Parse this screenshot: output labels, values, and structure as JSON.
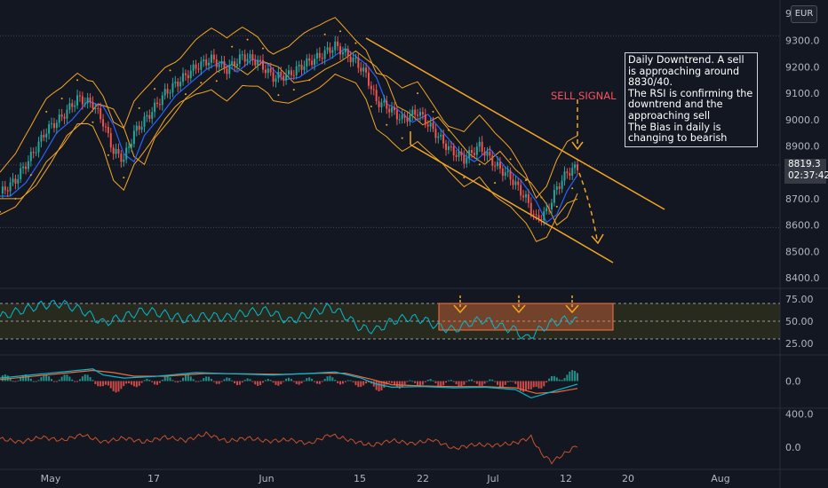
{
  "currency_button": "EUR",
  "price_tag": {
    "price": "8819.3",
    "countdown": "02:37:42"
  },
  "annotation": {
    "sell_signal": "SELL SIGNAL",
    "lines": [
      "Daily Downtrend. A sell is approaching around 8830/40.",
      "The RSI is confirming the downtrend and the approaching sell",
      "The Bias in daily is changing to bearish"
    ]
  },
  "colors": {
    "background": "#131722",
    "up_candle": "#26a69a",
    "down_candle": "#ef5350",
    "bollinger": "#f5a623",
    "ema_fast": "#2962ff",
    "ema_slow": "#f5a623",
    "channel": "#f5a623",
    "rsi_line": "#00bcd4",
    "rsi_band": "#3a3a1c",
    "macd_line": "#00bcd4",
    "signal_line": "#ef6c3a",
    "bottom_osc": "#c8512a",
    "highlight_box": "#ff7043"
  },
  "chart_data": [
    {
      "type": "candlestick",
      "panel": "price",
      "y_axis_ticks": [
        "9300.0",
        "9200.0",
        "9100.0",
        "9000.0",
        "8900.0",
        "8700.0",
        "8600.0",
        "8500.0",
        "8400.0"
      ],
      "ylim": [
        8370,
        9420
      ],
      "x_axis_ticks": [
        "May",
        "17",
        "Jun",
        "15",
        "22",
        "Jul",
        "12",
        "20",
        "Aug"
      ],
      "overlays": [
        "Bollinger Bands",
        "Parabolic SAR",
        "EMA fast",
        "EMA slow",
        "Descending channel"
      ],
      "series": [
        {
          "name": "close_path",
          "points": [
            [
              0,
              8720
            ],
            [
              6,
              8770
            ],
            [
              12,
              8860
            ],
            [
              18,
              8960
            ],
            [
              24,
              9010
            ],
            [
              30,
              9080
            ],
            [
              36,
              9060
            ],
            [
              40,
              8990
            ],
            [
              44,
              8880
            ],
            [
              48,
              8850
            ],
            [
              52,
              8950
            ],
            [
              58,
              9020
            ],
            [
              64,
              9100
            ],
            [
              70,
              9150
            ],
            [
              76,
              9200
            ],
            [
              82,
              9230
            ],
            [
              88,
              9190
            ],
            [
              94,
              9240
            ],
            [
              100,
              9220
            ],
            [
              106,
              9160
            ],
            [
              112,
              9170
            ],
            [
              118,
              9210
            ],
            [
              124,
              9240
            ],
            [
              130,
              9280
            ],
            [
              134,
              9250
            ],
            [
              138,
              9220
            ],
            [
              142,
              9170
            ],
            [
              146,
              9070
            ],
            [
              150,
              9050
            ],
            [
              156,
              9000
            ],
            [
              162,
              9030
            ],
            [
              168,
              8960
            ],
            [
              174,
              8890
            ],
            [
              180,
              8850
            ],
            [
              186,
              8900
            ],
            [
              192,
              8830
            ],
            [
              198,
              8780
            ],
            [
              204,
              8700
            ],
            [
              208,
              8620
            ],
            [
              212,
              8650
            ],
            [
              216,
              8740
            ],
            [
              220,
              8800
            ],
            [
              224,
              8819
            ]
          ]
        }
      ]
    },
    {
      "type": "line",
      "panel": "rsi",
      "y_axis_ticks": [
        "75.00",
        "50.00",
        "25.00"
      ],
      "ylim": [
        15,
        85
      ],
      "series": [
        {
          "name": "RSI",
          "points": [
            [
              0,
              55
            ],
            [
              8,
              62
            ],
            [
              16,
              68
            ],
            [
              24,
              70
            ],
            [
              32,
              62
            ],
            [
              40,
              48
            ],
            [
              48,
              55
            ],
            [
              56,
              62
            ],
            [
              64,
              58
            ],
            [
              72,
              52
            ],
            [
              80,
              56
            ],
            [
              88,
              54
            ],
            [
              96,
              60
            ],
            [
              104,
              62
            ],
            [
              112,
              50
            ],
            [
              120,
              58
            ],
            [
              128,
              66
            ],
            [
              134,
              56
            ],
            [
              140,
              42
            ],
            [
              146,
              40
            ],
            [
              152,
              50
            ],
            [
              158,
              54
            ],
            [
              164,
              52
            ],
            [
              170,
              44
            ],
            [
              176,
              40
            ],
            [
              182,
              48
            ],
            [
              188,
              52
            ],
            [
              194,
              44
            ],
            [
              200,
              40
            ],
            [
              204,
              30
            ],
            [
              208,
              38
            ],
            [
              214,
              48
            ],
            [
              220,
              52
            ],
            [
              224,
              50
            ]
          ]
        }
      ]
    },
    {
      "type": "line",
      "panel": "macd",
      "y_axis_ticks": [
        "0.0"
      ],
      "ylim": [
        -80,
        80
      ],
      "series": [
        {
          "name": "MACD",
          "points": [
            [
              0,
              10
            ],
            [
              12,
              20
            ],
            [
              24,
              30
            ],
            [
              36,
              40
            ],
            [
              40,
              20
            ],
            [
              48,
              10
            ],
            [
              60,
              15
            ],
            [
              76,
              28
            ],
            [
              90,
              24
            ],
            [
              106,
              20
            ],
            [
              120,
              25
            ],
            [
              130,
              30
            ],
            [
              140,
              10
            ],
            [
              146,
              -10
            ],
            [
              152,
              -20
            ],
            [
              164,
              -18
            ],
            [
              176,
              -22
            ],
            [
              188,
              -20
            ],
            [
              200,
              -28
            ],
            [
              206,
              -55
            ],
            [
              212,
              -40
            ],
            [
              220,
              -20
            ],
            [
              224,
              -10
            ]
          ]
        },
        {
          "name": "Signal",
          "points": [
            [
              0,
              5
            ],
            [
              12,
              15
            ],
            [
              24,
              25
            ],
            [
              36,
              35
            ],
            [
              44,
              28
            ],
            [
              52,
              16
            ],
            [
              64,
              16
            ],
            [
              80,
              25
            ],
            [
              96,
              24
            ],
            [
              110,
              22
            ],
            [
              124,
              26
            ],
            [
              134,
              26
            ],
            [
              144,
              6
            ],
            [
              152,
              -12
            ],
            [
              164,
              -16
            ],
            [
              176,
              -18
            ],
            [
              188,
              -18
            ],
            [
              200,
              -22
            ],
            [
              208,
              -40
            ],
            [
              216,
              -36
            ],
            [
              224,
              -24
            ]
          ]
        }
      ]
    },
    {
      "type": "line",
      "panel": "oscillator",
      "y_axis_ticks": [
        "400.0",
        "0.0"
      ],
      "ylim": [
        -250,
        450
      ],
      "series": [
        {
          "name": "Oscillator",
          "points": [
            [
              0,
              100
            ],
            [
              8,
              60
            ],
            [
              16,
              120
            ],
            [
              24,
              80
            ],
            [
              32,
              150
            ],
            [
              40,
              60
            ],
            [
              48,
              110
            ],
            [
              56,
              60
            ],
            [
              64,
              120
            ],
            [
              72,
              80
            ],
            [
              80,
              160
            ],
            [
              88,
              70
            ],
            [
              96,
              110
            ],
            [
              104,
              70
            ],
            [
              112,
              90
            ],
            [
              120,
              40
            ],
            [
              128,
              150
            ],
            [
              136,
              80
            ],
            [
              144,
              20
            ],
            [
              152,
              80
            ],
            [
              160,
              40
            ],
            [
              168,
              90
            ],
            [
              176,
              -20
            ],
            [
              184,
              30
            ],
            [
              192,
              20
            ],
            [
              200,
              50
            ],
            [
              206,
              120
            ],
            [
              210,
              -80
            ],
            [
              214,
              -180
            ],
            [
              220,
              -60
            ],
            [
              224,
              20
            ]
          ]
        }
      ]
    }
  ]
}
